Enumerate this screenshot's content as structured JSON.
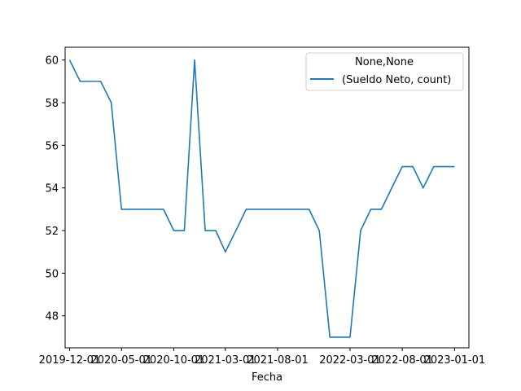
{
  "chart_data": {
    "type": "line",
    "xlabel": "Fecha",
    "ylabel": "",
    "ylim": [
      46.5,
      60.6
    ],
    "xlim": [
      "2019-11-18",
      "2023-02-12"
    ],
    "x_ticks": [
      "2019-12-01",
      "2020-05-01",
      "2020-10-01",
      "2021-03-01",
      "2021-08-01",
      "2022-03-01",
      "2022-08-01",
      "2023-01-01"
    ],
    "y_ticks": [
      48,
      50,
      52,
      54,
      56,
      58,
      60
    ],
    "legend": {
      "title": "None,None",
      "placement": "top-right",
      "entries": [
        "(Sueldo Neto, count)"
      ]
    },
    "grid": false,
    "series": [
      {
        "name": "(Sueldo Neto, count)",
        "color": "#1f77b4",
        "x": [
          "2019-12-01",
          "2020-01-01",
          "2020-02-01",
          "2020-03-01",
          "2020-04-01",
          "2020-05-01",
          "2020-06-01",
          "2020-07-01",
          "2020-08-01",
          "2020-09-01",
          "2020-10-01",
          "2020-11-01",
          "2020-12-01",
          "2021-01-01",
          "2021-02-01",
          "2021-03-01",
          "2021-04-01",
          "2021-05-01",
          "2021-06-01",
          "2021-07-01",
          "2021-08-01",
          "2021-09-01",
          "2021-10-01",
          "2021-11-01",
          "2021-12-01",
          "2022-01-01",
          "2022-02-01",
          "2022-03-01",
          "2022-04-01",
          "2022-05-01",
          "2022-06-01",
          "2022-07-01",
          "2022-08-01",
          "2022-09-01",
          "2022-10-01",
          "2022-11-01",
          "2022-12-01",
          "2023-01-01"
        ],
        "values": [
          60,
          59,
          59,
          59,
          58,
          53,
          53,
          53,
          53,
          53,
          52,
          52,
          60,
          52,
          52,
          51,
          52,
          53,
          53,
          53,
          53,
          53,
          53,
          53,
          52,
          47,
          47,
          47,
          52,
          53,
          53,
          54,
          55,
          55,
          54,
          55,
          55,
          55
        ]
      }
    ]
  }
}
